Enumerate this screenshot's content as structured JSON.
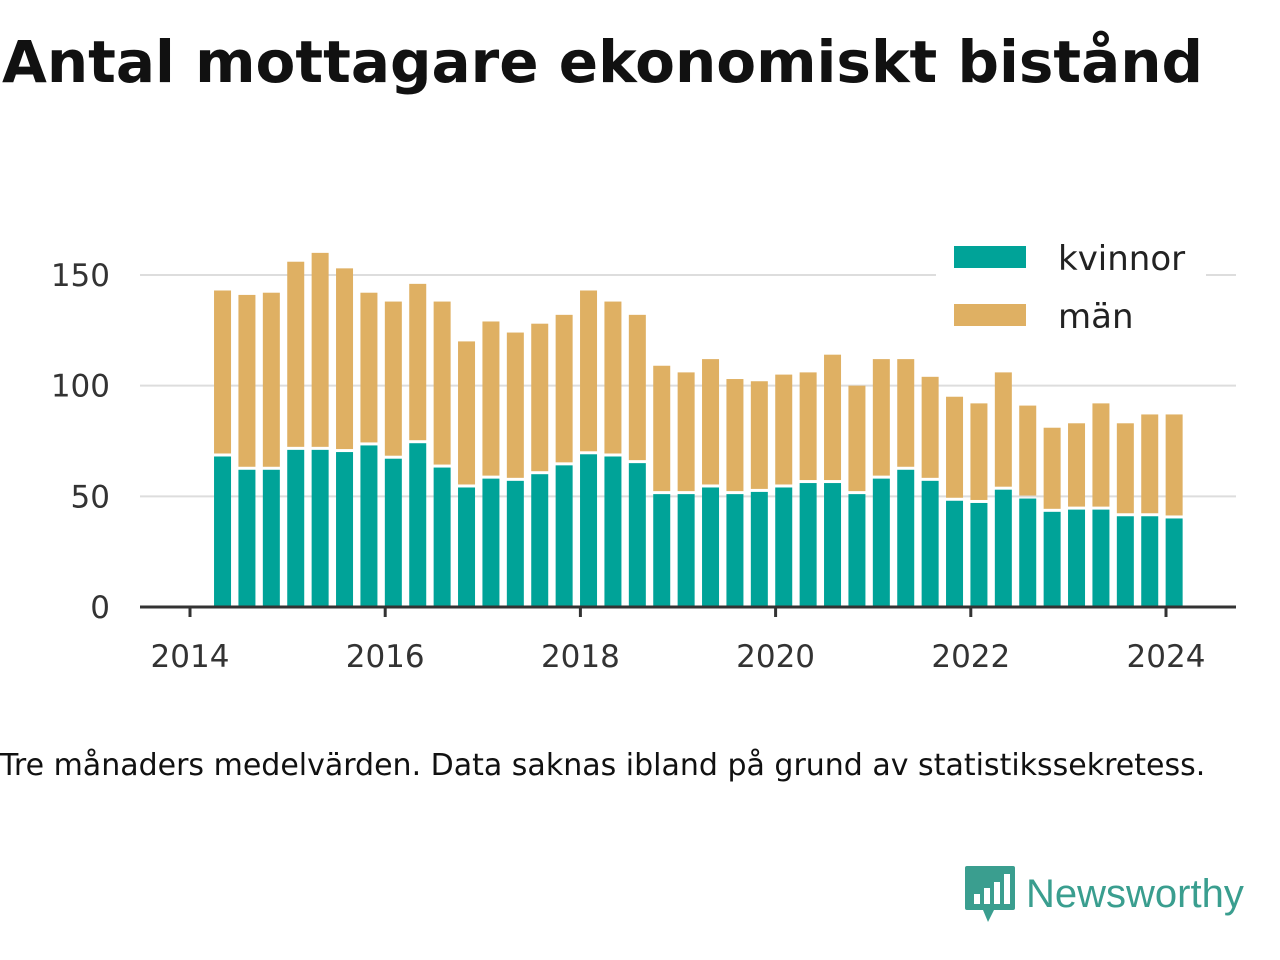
{
  "title": "Antal mottagare ekonomiskt bistånd",
  "note": "Tre månaders medelvärden. Data saknas ibland på grund av statistikssekretess.",
  "brand": {
    "name": "Newsworthy",
    "color": "#3a9e8f",
    "icon": "newsworthy-logo-icon"
  },
  "chart_data": {
    "type": "bar",
    "stacked": true,
    "x": [
      "2014-05",
      "2014-08",
      "2014-11",
      "2015-02",
      "2015-05",
      "2015-08",
      "2015-11",
      "2016-02",
      "2016-05",
      "2016-08",
      "2016-11",
      "2017-02",
      "2017-05",
      "2017-08",
      "2017-11",
      "2018-02",
      "2018-05",
      "2018-08",
      "2018-11",
      "2019-02",
      "2019-05",
      "2019-08",
      "2019-11",
      "2020-02",
      "2020-05",
      "2020-08",
      "2020-11",
      "2021-02",
      "2021-05",
      "2021-08",
      "2021-11",
      "2022-02",
      "2022-05",
      "2022-08",
      "2022-11",
      "2023-02",
      "2023-05",
      "2023-08",
      "2023-11",
      "2024-02"
    ],
    "series": [
      {
        "name": "kvinnor",
        "color": "#00a398",
        "values": [
          68,
          62,
          62,
          71,
          71,
          70,
          73,
          67,
          74,
          63,
          54,
          58,
          57,
          60,
          64,
          69,
          68,
          65,
          51,
          51,
          54,
          51,
          52,
          54,
          56,
          56,
          51,
          58,
          62,
          57,
          48,
          47,
          53,
          49,
          43,
          44,
          44,
          41,
          41,
          40
        ]
      },
      {
        "name": "män",
        "color": "#dfb063",
        "values": [
          75,
          79,
          80,
          85,
          89,
          83,
          69,
          71,
          72,
          75,
          66,
          71,
          67,
          68,
          68,
          74,
          70,
          67,
          58,
          55,
          58,
          52,
          50,
          51,
          50,
          58,
          49,
          54,
          50,
          47,
          47,
          45,
          53,
          42,
          38,
          39,
          48,
          42,
          46,
          47
        ]
      }
    ],
    "x_ticks": [
      "2014",
      "2016",
      "2018",
      "2020",
      "2022",
      "2024"
    ],
    "y_ticks": [
      0,
      50,
      100,
      150
    ],
    "ylim": [
      0,
      165
    ],
    "legend": {
      "position": "top-right",
      "entries": [
        "kvinnor",
        "män"
      ]
    },
    "grid": true
  }
}
